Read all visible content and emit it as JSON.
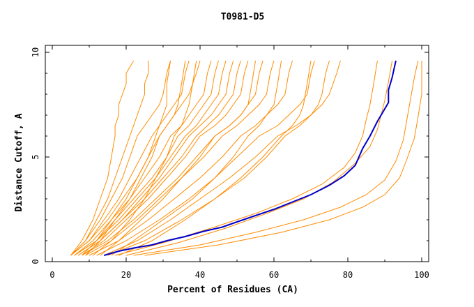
{
  "chart_data": {
    "type": "line",
    "title": "T0981-D5",
    "xlabel": "Percent of Residues (CA)",
    "ylabel": "Distance Cutoff, A",
    "xlim": [
      0,
      100
    ],
    "ylim": [
      0,
      10
    ],
    "x_ticks": [
      "0",
      "20",
      "40",
      "60",
      "80",
      "100"
    ],
    "y_ticks": [
      "0",
      "5",
      "10"
    ],
    "grid": false,
    "legend": "none",
    "colors": {
      "highlight": "#0000cc",
      "others": "#ff8c00"
    },
    "highlight_series": {
      "x": [
        14,
        18,
        22,
        27,
        31,
        36,
        41,
        46,
        50,
        55,
        60,
        65,
        70,
        75,
        79,
        82,
        84,
        86,
        88,
        90,
        91,
        91,
        92,
        93
      ],
      "y": [
        0.3,
        0.5,
        0.65,
        0.8,
        1.0,
        1.2,
        1.45,
        1.65,
        1.9,
        2.2,
        2.5,
        2.85,
        3.2,
        3.65,
        4.1,
        4.6,
        5.4,
        6.0,
        6.7,
        7.3,
        7.6,
        8.2,
        8.8,
        9.6
      ]
    },
    "series": [
      {
        "x": [
          5,
          8,
          11,
          13,
          15,
          16,
          17,
          17,
          18,
          18,
          19,
          20,
          20,
          21,
          22
        ],
        "y": [
          0.3,
          1,
          2,
          3,
          4,
          5,
          6,
          6.5,
          7,
          7.5,
          8,
          8.5,
          9,
          9.3,
          9.6
        ]
      },
      {
        "x": [
          5,
          9,
          12,
          15,
          17,
          19,
          21,
          22,
          23,
          24,
          25,
          25,
          26,
          26
        ],
        "y": [
          0.3,
          1,
          2,
          3,
          4,
          5,
          6,
          6.5,
          7,
          7.5,
          8,
          8.5,
          9,
          9.6
        ]
      },
      {
        "x": [
          5,
          9,
          13,
          16,
          19,
          21,
          23,
          25,
          27,
          29,
          30,
          31,
          32
        ],
        "y": [
          0.3,
          1,
          2,
          3,
          4,
          5,
          6,
          6.5,
          7,
          7.5,
          8,
          9,
          9.6
        ]
      },
      {
        "x": [
          5,
          10,
          14,
          18,
          21,
          24,
          27,
          29,
          31,
          33,
          35,
          36,
          37
        ],
        "y": [
          0.3,
          1,
          2,
          3,
          4,
          5,
          6,
          6.5,
          7,
          7.5,
          8,
          9,
          9.6
        ]
      },
      {
        "x": [
          5,
          10,
          15,
          19,
          23,
          26,
          29,
          31,
          33,
          35,
          37,
          38,
          39,
          40
        ],
        "y": [
          0.3,
          1,
          2,
          3,
          4,
          5,
          6,
          6.5,
          7,
          7.5,
          8,
          8.5,
          9,
          9.6
        ]
      },
      {
        "x": [
          6,
          11,
          16,
          21,
          25,
          29,
          32,
          35,
          37,
          39,
          41,
          42,
          43
        ],
        "y": [
          0.3,
          1,
          2,
          3,
          4,
          5,
          6,
          6.5,
          7,
          7.5,
          8,
          9,
          9.6
        ]
      },
      {
        "x": [
          6,
          12,
          17,
          22,
          27,
          31,
          34,
          37,
          39,
          41,
          43,
          44,
          45
        ],
        "y": [
          0.3,
          1,
          2,
          3,
          4,
          5,
          6,
          6.5,
          7,
          7.5,
          8,
          9,
          9.6
        ]
      },
      {
        "x": [
          6,
          12,
          18,
          23,
          28,
          32,
          36,
          39,
          41,
          43,
          45,
          46,
          47
        ],
        "y": [
          0.3,
          1,
          2,
          3,
          4,
          5,
          6,
          6.5,
          7,
          7.5,
          8,
          9,
          9.6
        ]
      },
      {
        "x": [
          7,
          13,
          19,
          24,
          29,
          33,
          37,
          40,
          43,
          45,
          47,
          48,
          49
        ],
        "y": [
          0.3,
          1,
          2,
          3,
          4,
          5,
          6,
          6.5,
          7,
          7.5,
          8,
          9,
          9.6
        ]
      },
      {
        "x": [
          7,
          13,
          19,
          25,
          30,
          35,
          39,
          42,
          45,
          47,
          49,
          50,
          51
        ],
        "y": [
          0.3,
          1,
          2,
          3,
          4,
          5,
          6,
          6.5,
          7,
          7.5,
          8,
          9,
          9.6
        ]
      },
      {
        "x": [
          8,
          14,
          20,
          26,
          31,
          36,
          40,
          44,
          47,
          49,
          51,
          52,
          53
        ],
        "y": [
          0.3,
          1,
          2,
          3,
          4,
          5,
          6,
          6.5,
          7,
          7.5,
          8,
          9,
          9.6
        ]
      },
      {
        "x": [
          8,
          15,
          22,
          28,
          34,
          39,
          44,
          48,
          51,
          53,
          55,
          56,
          57
        ],
        "y": [
          0.3,
          1,
          2,
          3,
          4,
          5,
          6,
          6.5,
          7,
          7.5,
          8,
          9,
          9.6
        ]
      },
      {
        "x": [
          9,
          16,
          23,
          29,
          35,
          41,
          46,
          50,
          53,
          56,
          58,
          59,
          60
        ],
        "y": [
          0.3,
          1,
          2,
          3,
          4,
          5,
          6,
          6.5,
          7,
          7.5,
          8,
          9,
          9.6
        ]
      },
      {
        "x": [
          10,
          18,
          26,
          33,
          40,
          46,
          51,
          55,
          58,
          61,
          63,
          64,
          65
        ],
        "y": [
          0.3,
          1,
          2,
          3,
          4,
          5,
          6,
          6.5,
          7,
          7.5,
          8,
          9,
          9.6
        ]
      },
      {
        "x": [
          12,
          20,
          29,
          37,
          44,
          50,
          56,
          61,
          64,
          67,
          69,
          70,
          71
        ],
        "y": [
          0.3,
          1,
          2,
          3,
          4,
          5,
          6,
          6.5,
          7,
          7.5,
          8,
          9,
          9.6
        ]
      },
      {
        "x": [
          14,
          23,
          32,
          40,
          48,
          55,
          61,
          66,
          70,
          73,
          75,
          77,
          78
        ],
        "y": [
          0.3,
          1,
          2,
          3,
          4,
          5,
          6,
          6.5,
          7,
          7.5,
          8,
          9,
          9.6
        ]
      },
      {
        "x": [
          15,
          25,
          35,
          44,
          52,
          58,
          63,
          67,
          70,
          72,
          73,
          74,
          75
        ],
        "y": [
          0.3,
          1,
          2,
          3,
          4,
          5,
          6,
          6.5,
          7,
          7.5,
          8,
          9,
          9.6
        ]
      },
      {
        "x": [
          17,
          30,
          43,
          55,
          65,
          73,
          79,
          82,
          84,
          85,
          86,
          87,
          88
        ],
        "y": [
          0.3,
          0.9,
          1.6,
          2.3,
          3.0,
          3.7,
          4.5,
          5.2,
          6.0,
          6.8,
          7.5,
          8.5,
          9.6
        ]
      },
      {
        "x": [
          20,
          34,
          47,
          58,
          68,
          76,
          82,
          86,
          88,
          89,
          90,
          91,
          92
        ],
        "y": [
          0.3,
          0.9,
          1.6,
          2.3,
          3.0,
          3.8,
          4.7,
          5.5,
          6.3,
          7.0,
          7.7,
          8.6,
          9.6
        ]
      },
      {
        "x": [
          22,
          40,
          55,
          68,
          78,
          85,
          90,
          93,
          95,
          96,
          97,
          98,
          99
        ],
        "y": [
          0.3,
          0.8,
          1.4,
          2.0,
          2.6,
          3.2,
          3.9,
          4.8,
          5.8,
          6.8,
          7.8,
          8.8,
          9.6
        ]
      },
      {
        "x": [
          25,
          45,
          62,
          75,
          84,
          90,
          94,
          96,
          98,
          99,
          100,
          100,
          100
        ],
        "y": [
          0.3,
          0.8,
          1.4,
          2.0,
          2.6,
          3.2,
          4.0,
          4.9,
          5.9,
          6.9,
          8.0,
          9.0,
          9.6
        ]
      },
      {
        "x": [
          9,
          13,
          17,
          21,
          24,
          27,
          29,
          31,
          33,
          34,
          35,
          36
        ],
        "y": [
          0.3,
          1,
          2,
          3,
          4,
          5,
          6,
          6.5,
          7,
          7.5,
          8.5,
          9.6
        ]
      },
      {
        "x": [
          11,
          16,
          21,
          25,
          28,
          31,
          33,
          35,
          36,
          37,
          38,
          39
        ],
        "y": [
          0.3,
          1,
          2,
          3,
          4,
          5,
          6,
          6.5,
          7,
          7.5,
          8.5,
          9.6
        ]
      },
      {
        "x": [
          13,
          18,
          24,
          30,
          35,
          40,
          44,
          48,
          51,
          53,
          54,
          55
        ],
        "y": [
          0.3,
          1,
          2,
          3,
          4,
          5,
          6,
          6.5,
          7,
          7.5,
          8.5,
          9.6
        ]
      },
      {
        "x": [
          16,
          22,
          30,
          38,
          44,
          49,
          53,
          56,
          58,
          60,
          61,
          62
        ],
        "y": [
          0.3,
          1,
          2,
          3,
          4,
          5,
          6,
          6.5,
          7,
          7.5,
          8.5,
          9.6
        ]
      },
      {
        "x": [
          18,
          27,
          36,
          44,
          51,
          57,
          62,
          65,
          67,
          68,
          69,
          70
        ],
        "y": [
          0.3,
          1,
          2,
          3,
          4,
          5,
          6,
          6.5,
          7,
          7.5,
          8.5,
          9.6
        ]
      },
      {
        "x": [
          8,
          12,
          16,
          20,
          23,
          26,
          28,
          29,
          30,
          31,
          31,
          32
        ],
        "y": [
          0.3,
          1,
          2,
          3,
          4,
          5,
          6,
          6.5,
          7,
          7.5,
          8.5,
          9.6
        ]
      }
    ]
  }
}
